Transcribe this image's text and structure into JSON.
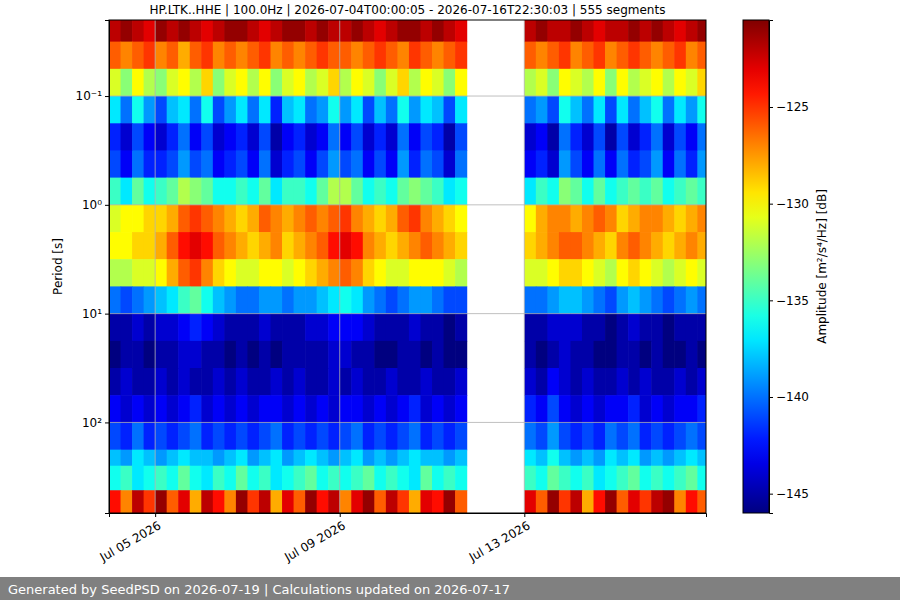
{
  "chart_data": {
    "type": "heatmap",
    "title": "HP.LTK..HHE | 100.0Hz | 2026-07-04T00:00:05 - 2026-07-16T22:30:03 | 555 segments",
    "y_label": "Period [s]",
    "footer": "Generated by SeedPSD on 2026-07-19 | Calculations updated on 2026-07-17",
    "log": "y",
    "grid": true,
    "xlim": [
      "2026-07-04T00:00:05Z",
      "2026-07-16T22:30:03Z"
    ],
    "xticks": [
      {
        "value": "2026-07-05T00:00:00Z",
        "label": "Jul 05 2026"
      },
      {
        "value": "2026-07-09T00:00:00Z",
        "label": "Jul 09 2026"
      },
      {
        "value": "2026-07-13T00:00:00Z",
        "label": "Jul 13 2026"
      }
    ],
    "ylim": [
      0.02,
      680
    ],
    "yticks": [
      {
        "value": 0.1,
        "label": "10⁻¹"
      },
      {
        "value": 1,
        "label": "10⁰"
      },
      {
        "value": 10,
        "label": "10¹"
      },
      {
        "value": 100,
        "label": "10²"
      }
    ],
    "colorbar_label": "Amplitude [m²/s⁴/Hz] [dB]",
    "colorbar_range": [
      -146,
      -120.5
    ],
    "colorbar_ticks": [
      {
        "value": -125,
        "label": "−125"
      },
      {
        "value": -130,
        "label": "−130"
      },
      {
        "value": -135,
        "label": "−135"
      },
      {
        "value": -140,
        "label": "−140"
      },
      {
        "value": -145,
        "label": "−145"
      }
    ],
    "x_bins": [
      "2026-07-04T00:00:00Z",
      "2026-07-04T06:00:00Z",
      "2026-07-04T12:00:00Z",
      "2026-07-04T18:00:00Z",
      "2026-07-05T00:00:00Z",
      "2026-07-05T06:00:00Z",
      "2026-07-05T12:00:00Z",
      "2026-07-05T18:00:00Z",
      "2026-07-06T00:00:00Z",
      "2026-07-06T06:00:00Z",
      "2026-07-06T12:00:00Z",
      "2026-07-06T18:00:00Z",
      "2026-07-07T00:00:00Z",
      "2026-07-07T06:00:00Z",
      "2026-07-07T12:00:00Z",
      "2026-07-07T18:00:00Z",
      "2026-07-08T00:00:00Z",
      "2026-07-08T06:00:00Z",
      "2026-07-08T12:00:00Z",
      "2026-07-08T18:00:00Z",
      "2026-07-09T00:00:00Z",
      "2026-07-09T06:00:00Z",
      "2026-07-09T12:00:00Z",
      "2026-07-09T18:00:00Z",
      "2026-07-10T00:00:00Z",
      "2026-07-10T06:00:00Z",
      "2026-07-10T12:00:00Z",
      "2026-07-10T18:00:00Z",
      "2026-07-11T00:00:00Z",
      "2026-07-11T06:00:00Z",
      "2026-07-11T12:00:00Z",
      "2026-07-11T18:00:00Z",
      "2026-07-12T00:00:00Z",
      "2026-07-12T06:00:00Z",
      "2026-07-12T12:00:00Z",
      "2026-07-12T18:00:00Z",
      "2026-07-13T00:00:00Z",
      "2026-07-13T06:00:00Z",
      "2026-07-13T12:00:00Z",
      "2026-07-13T18:00:00Z",
      "2026-07-14T00:00:00Z",
      "2026-07-14T06:00:00Z",
      "2026-07-14T12:00:00Z",
      "2026-07-14T18:00:00Z",
      "2026-07-15T00:00:00Z",
      "2026-07-15T06:00:00Z",
      "2026-07-15T12:00:00Z",
      "2026-07-15T18:00:00Z",
      "2026-07-16T00:00:00Z",
      "2026-07-16T06:00:00Z",
      "2026-07-16T12:00:00Z",
      "2026-07-16T18:00:00Z",
      "2026-07-17T00:00:00Z"
    ],
    "y_bins": [
      0.02,
      0.0316,
      0.0562,
      0.1,
      0.178,
      0.316,
      0.562,
      1,
      1.78,
      3.16,
      5.62,
      10,
      17.8,
      31.6,
      56.2,
      100,
      178,
      250,
      420,
      680
    ],
    "values": [
      [
        -122,
        -121,
        -122,
        -123,
        -121,
        -122,
        -121,
        -122,
        -123,
        -122,
        -121,
        -121,
        -122,
        -123,
        -122,
        -121,
        -121,
        -122,
        -121,
        -122,
        -122,
        -121,
        -122,
        -123,
        -122,
        -121,
        -121,
        -122,
        -121,
        -122,
        -123,
        null,
        null,
        null,
        null,
        null,
        -122,
        -121,
        -122,
        -122,
        -121,
        -122,
        -123,
        -122,
        -122,
        -121,
        -122,
        -121,
        -122,
        -123,
        -122,
        -121
      ],
      [
        -126,
        -127,
        -126,
        -125,
        -127,
        -126,
        -128,
        -126,
        -125,
        -127,
        -126,
        -127,
        -126,
        -125,
        -127,
        -126,
        -127,
        -126,
        -125,
        -126,
        -126,
        -127,
        -126,
        -125,
        -126,
        -127,
        -125,
        -126,
        -127,
        -126,
        -125,
        null,
        null,
        null,
        null,
        null,
        -126,
        -127,
        -126,
        -125,
        -127,
        -126,
        -125,
        -127,
        -126,
        -125,
        -126,
        -127,
        -126,
        -125,
        -127,
        -126
      ],
      [
        -131,
        -133,
        -130,
        -132,
        -133,
        -131,
        -130,
        -132,
        -129,
        -133,
        -131,
        -130,
        -132,
        -130,
        -133,
        -131,
        -130,
        -132,
        -131,
        -129,
        -132,
        -130,
        -131,
        -133,
        -131,
        -129,
        -132,
        -130,
        -131,
        -133,
        -130,
        null,
        null,
        null,
        null,
        null,
        -132,
        -131,
        -133,
        -130,
        -131,
        -132,
        -130,
        -133,
        -130,
        -132,
        -131,
        -130,
        -132,
        -130,
        -131,
        -129
      ],
      [
        -137,
        -140,
        -136,
        -139,
        -141,
        -138,
        -137,
        -140,
        -136,
        -141,
        -139,
        -137,
        -140,
        -137,
        -142,
        -138,
        -137,
        -140,
        -139,
        -136,
        -139,
        -137,
        -141,
        -138,
        -140,
        -136,
        -139,
        -137,
        -138,
        -141,
        -137,
        null,
        null,
        null,
        null,
        null,
        -140,
        -139,
        -141,
        -136,
        -138,
        -140,
        -137,
        -141,
        -137,
        -140,
        -138,
        -136,
        -140,
        -137,
        -139,
        -136
      ],
      [
        -142,
        -144,
        -141,
        -143,
        -144,
        -142,
        -140,
        -143,
        -141,
        -144,
        -143,
        -142,
        -144,
        -141,
        -145,
        -143,
        -142,
        -144,
        -143,
        -140,
        -143,
        -141,
        -144,
        -142,
        -144,
        -140,
        -143,
        -141,
        -142,
        -145,
        -141,
        null,
        null,
        null,
        null,
        null,
        -144,
        -143,
        -145,
        -140,
        -142,
        -144,
        -141,
        -145,
        -141,
        -144,
        -142,
        -140,
        -144,
        -141,
        -143,
        -140
      ],
      [
        -141,
        -143,
        -140,
        -142,
        -142,
        -141,
        -139,
        -141,
        -140,
        -143,
        -142,
        -141,
        -143,
        -140,
        -144,
        -142,
        -141,
        -143,
        -141,
        -139,
        -141,
        -140,
        -143,
        -141,
        -143,
        -139,
        -142,
        -140,
        -141,
        -144,
        -140,
        null,
        null,
        null,
        null,
        null,
        -143,
        -142,
        -144,
        -139,
        -141,
        -143,
        -140,
        -143,
        -140,
        -142,
        -141,
        -139,
        -143,
        -140,
        -142,
        -139
      ],
      [
        -135,
        -137,
        -134,
        -136,
        -135,
        -134,
        -132,
        -133,
        -134,
        -136,
        -136,
        -135,
        -136,
        -134,
        -137,
        -135,
        -135,
        -136,
        -134,
        -132,
        -132,
        -134,
        -136,
        -135,
        -136,
        -134,
        -133,
        -134,
        -135,
        -137,
        -136,
        null,
        null,
        null,
        null,
        null,
        -137,
        -135,
        -136,
        -133,
        -134,
        -136,
        -134,
        -136,
        -135,
        -134,
        -135,
        -134,
        -136,
        -135,
        -134,
        -135
      ],
      [
        -131,
        -130,
        -130,
        -129,
        -129,
        -128,
        -126,
        -125,
        -126,
        -127,
        -128,
        -129,
        -128,
        -126,
        -127,
        -128,
        -127,
        -126,
        -127,
        -126,
        -125,
        -127,
        -128,
        -129,
        -128,
        -126,
        -125,
        -127,
        -128,
        -129,
        -130,
        null,
        null,
        null,
        null,
        null,
        -130,
        -128,
        -127,
        -127,
        -128,
        -127,
        -126,
        -127,
        -129,
        -128,
        -127,
        -127,
        -128,
        -129,
        -128,
        -127
      ],
      [
        -130,
        -130,
        -129,
        -129,
        -128,
        -126,
        -124,
        -123,
        -124,
        -126,
        -127,
        -128,
        -129,
        -128,
        -127,
        -129,
        -128,
        -127,
        -126,
        -124,
        -123,
        -124,
        -127,
        -128,
        -129,
        -128,
        -127,
        -126,
        -127,
        -128,
        -129,
        null,
        null,
        null,
        null,
        null,
        -129,
        -128,
        -127,
        -126,
        -126,
        -127,
        -128,
        -129,
        -127,
        -126,
        -127,
        -128,
        -129,
        -128,
        -127,
        -128
      ],
      [
        -132,
        -132,
        -131,
        -131,
        -130,
        -128,
        -126,
        -125,
        -127,
        -129,
        -130,
        -131,
        -131,
        -130,
        -130,
        -131,
        -130,
        -129,
        -128,
        -127,
        -126,
        -127,
        -129,
        -130,
        -131,
        -131,
        -130,
        -130,
        -130,
        -131,
        -132,
        null,
        null,
        null,
        null,
        null,
        -131,
        -131,
        -130,
        -129,
        -129,
        -130,
        -131,
        -132,
        -130,
        -129,
        -130,
        -131,
        -132,
        -131,
        -130,
        -131
      ],
      [
        -140,
        -141,
        -140,
        -139,
        -138,
        -137,
        -135,
        -134,
        -136,
        -138,
        -139,
        -140,
        -140,
        -139,
        -139,
        -140,
        -139,
        -139,
        -138,
        -137,
        -136,
        -137,
        -139,
        -140,
        -141,
        -140,
        -139,
        -139,
        -140,
        -141,
        -141,
        null,
        null,
        null,
        null,
        null,
        -140,
        -140,
        -139,
        -138,
        -138,
        -139,
        -140,
        -141,
        -139,
        -138,
        -139,
        -140,
        -141,
        -140,
        -139,
        -140
      ],
      [
        -145,
        -145,
        -144,
        -145,
        -144,
        -144,
        -143,
        -142,
        -143,
        -144,
        -145,
        -145,
        -145,
        -144,
        -145,
        -145,
        -145,
        -144,
        -144,
        -143,
        -143,
        -143,
        -144,
        -145,
        -145,
        -145,
        -144,
        -145,
        -145,
        -146,
        -145,
        null,
        null,
        null,
        null,
        null,
        -145,
        -145,
        -144,
        -144,
        -144,
        -145,
        -145,
        -146,
        -145,
        -144,
        -145,
        -145,
        -146,
        -145,
        -145,
        -145
      ],
      [
        -146,
        -145,
        -145,
        -146,
        -145,
        -145,
        -144,
        -144,
        -145,
        -145,
        -146,
        -145,
        -146,
        -145,
        -146,
        -145,
        -145,
        -145,
        -145,
        -144,
        -144,
        -145,
        -145,
        -146,
        -146,
        -145,
        -145,
        -146,
        -145,
        -146,
        -146,
        null,
        null,
        null,
        null,
        null,
        -145,
        -146,
        -145,
        -144,
        -145,
        -145,
        -146,
        -146,
        -145,
        -145,
        -146,
        -145,
        -146,
        -146,
        -145,
        -146
      ],
      [
        -145,
        -144,
        -145,
        -145,
        -144,
        -145,
        -144,
        -145,
        -145,
        -144,
        -145,
        -144,
        -145,
        -145,
        -144,
        -145,
        -144,
        -145,
        -145,
        -144,
        -145,
        -144,
        -145,
        -145,
        -144,
        -145,
        -145,
        -144,
        -145,
        -145,
        -144,
        null,
        null,
        null,
        null,
        null,
        -144,
        -145,
        -143,
        -144,
        -145,
        -144,
        -145,
        -145,
        -144,
        -145,
        -144,
        -145,
        -145,
        -144,
        -145,
        -144
      ],
      [
        -143,
        -144,
        -143,
        -144,
        -143,
        -144,
        -143,
        -142,
        -144,
        -143,
        -144,
        -143,
        -144,
        -143,
        -143,
        -144,
        -143,
        -144,
        -143,
        -144,
        -143,
        -143,
        -144,
        -143,
        -144,
        -143,
        -142,
        -144,
        -143,
        -144,
        -143,
        null,
        null,
        null,
        null,
        null,
        -142,
        -143,
        -141,
        -143,
        -144,
        -143,
        -144,
        -143,
        -143,
        -142,
        -144,
        -143,
        -144,
        -143,
        -143,
        -142
      ],
      [
        -141,
        -142,
        -140,
        -142,
        -141,
        -142,
        -141,
        -140,
        -142,
        -141,
        -142,
        -141,
        -142,
        -141,
        -140,
        -142,
        -141,
        -142,
        -141,
        -142,
        -141,
        -140,
        -142,
        -141,
        -142,
        -141,
        -140,
        -142,
        -141,
        -142,
        -141,
        null,
        null,
        null,
        null,
        null,
        -140,
        -141,
        -139,
        -141,
        -142,
        -141,
        -142,
        -140,
        -141,
        -140,
        -142,
        -141,
        -142,
        -141,
        -140,
        -141
      ],
      [
        -138,
        -139,
        -137,
        -138,
        -139,
        -138,
        -137,
        -138,
        -138,
        -139,
        -138,
        -137,
        -139,
        -138,
        -137,
        -139,
        -138,
        -137,
        -138,
        -139,
        -138,
        -137,
        -139,
        -138,
        -139,
        -138,
        -137,
        -138,
        -138,
        -139,
        -138,
        null,
        null,
        null,
        null,
        null,
        -137,
        -138,
        -136,
        -138,
        -139,
        -138,
        -139,
        -137,
        -138,
        -137,
        -139,
        -138,
        -139,
        -138,
        -137,
        -138
      ],
      [
        -136,
        -135,
        -137,
        -136,
        -135,
        -136,
        -134,
        -136,
        -137,
        -135,
        -136,
        -134,
        -136,
        -135,
        -137,
        -136,
        -135,
        -134,
        -136,
        -135,
        -136,
        -135,
        -134,
        -136,
        -135,
        -136,
        -137,
        -134,
        -136,
        -135,
        -136,
        null,
        null,
        null,
        null,
        null,
        -135,
        -136,
        -134,
        -135,
        -136,
        -135,
        -137,
        -136,
        -135,
        -134,
        -136,
        -135,
        -136,
        -135,
        -134,
        -136
      ],
      [
        -124,
        -127,
        -122,
        -125,
        -121,
        -126,
        -123,
        -128,
        -122,
        -124,
        -127,
        -121,
        -125,
        -122,
        -128,
        -123,
        -126,
        -121,
        -124,
        -122,
        -127,
        -123,
        -121,
        -126,
        -122,
        -125,
        -128,
        -123,
        -124,
        -121,
        -126,
        null,
        null,
        null,
        null,
        null,
        -123,
        -126,
        -121,
        -125,
        -122,
        -128,
        -124,
        -121,
        -126,
        -123,
        -125,
        -122,
        -121,
        -127,
        -124,
        -126
      ]
    ]
  }
}
